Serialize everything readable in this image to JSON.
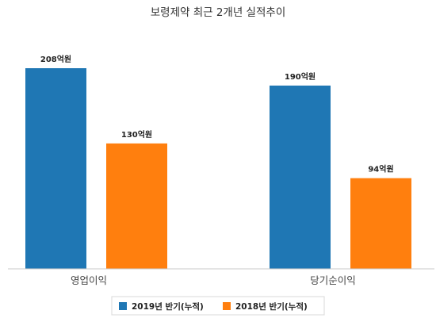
{
  "chart_data": {
    "type": "bar",
    "title": "보령제약 최근 2개년 실적추이",
    "categories": [
      "영업이익",
      "당기순이익"
    ],
    "series": [
      {
        "name": "2019년 반기(누적)",
        "color": "#1f77b4",
        "values": [
          208,
          190
        ],
        "labels": [
          "208억원",
          "190억원"
        ]
      },
      {
        "name": "2018년 반기(누적)",
        "color": "#ff7f0e",
        "values": [
          130,
          94
        ],
        "labels": [
          "130억원",
          "94억원"
        ]
      }
    ],
    "ylim": [
      0,
      208
    ],
    "grid": false,
    "legend_position": "bottom"
  }
}
